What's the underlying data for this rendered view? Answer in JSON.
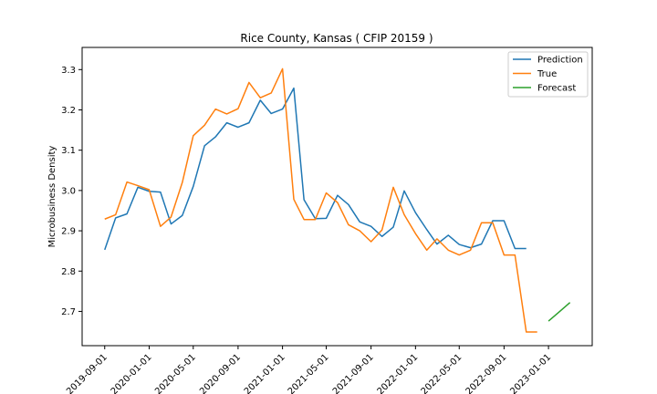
{
  "chart_data": {
    "type": "line",
    "title": "Rice County, Kansas ( CFIP 20159 )",
    "xlabel": "",
    "ylabel": "Microbusiness Density",
    "x_start": "2019-09-01",
    "x_ticks": [
      "2019-09-01",
      "2020-01-01",
      "2020-05-01",
      "2020-09-01",
      "2021-01-01",
      "2021-05-01",
      "2021-09-01",
      "2022-01-01",
      "2022-05-01",
      "2022-09-01",
      "2023-01-01"
    ],
    "y_ticks": [
      "2.7",
      "2.8",
      "2.9",
      "3.0",
      "3.1",
      "3.2",
      "3.3"
    ],
    "ylim": [
      2.615,
      3.355
    ],
    "xlim": [
      "2019-07-01",
      "2023-05-01"
    ],
    "legend_position": "top-right",
    "series": [
      {
        "name": "Prediction",
        "color": "#1f77b4",
        "x": [
          "2019-09-01",
          "2019-10-01",
          "2019-11-01",
          "2019-12-01",
          "2020-01-01",
          "2020-02-01",
          "2020-03-01",
          "2020-04-01",
          "2020-05-01",
          "2020-06-01",
          "2020-07-01",
          "2020-08-01",
          "2020-09-01",
          "2020-10-01",
          "2020-11-01",
          "2020-12-01",
          "2021-01-01",
          "2021-02-01",
          "2021-03-01",
          "2021-04-01",
          "2021-05-01",
          "2021-06-01",
          "2021-07-01",
          "2021-08-01",
          "2021-09-01",
          "2021-10-01",
          "2021-11-01",
          "2021-12-01",
          "2022-01-01",
          "2022-02-01",
          "2022-03-01",
          "2022-04-01",
          "2022-05-01",
          "2022-06-01",
          "2022-07-01",
          "2022-08-01",
          "2022-09-01",
          "2022-10-01",
          "2022-11-01"
        ],
        "y": [
          2.853,
          2.932,
          2.942,
          3.008,
          2.998,
          2.996,
          2.917,
          2.938,
          3.01,
          3.111,
          3.133,
          3.168,
          3.157,
          3.168,
          3.224,
          3.191,
          3.202,
          3.254,
          2.977,
          2.93,
          2.931,
          2.988,
          2.965,
          2.922,
          2.911,
          2.886,
          2.909,
          2.999,
          2.945,
          2.903,
          2.867,
          2.889,
          2.866,
          2.858,
          2.867,
          2.925,
          2.925,
          2.856,
          2.856
        ]
      },
      {
        "name": "True",
        "color": "#ff7f0e",
        "x": [
          "2019-09-01",
          "2019-10-01",
          "2019-11-01",
          "2019-12-01",
          "2020-01-01",
          "2020-02-01",
          "2020-03-01",
          "2020-04-01",
          "2020-05-01",
          "2020-06-01",
          "2020-07-01",
          "2020-08-01",
          "2020-09-01",
          "2020-10-01",
          "2020-11-01",
          "2020-12-01",
          "2021-01-01",
          "2021-02-01",
          "2021-03-01",
          "2021-04-01",
          "2021-05-01",
          "2021-06-01",
          "2021-07-01",
          "2021-08-01",
          "2021-09-01",
          "2021-10-01",
          "2021-11-01",
          "2021-12-01",
          "2022-01-01",
          "2022-02-01",
          "2022-03-01",
          "2022-04-01",
          "2022-05-01",
          "2022-06-01",
          "2022-07-01",
          "2022-08-01",
          "2022-09-01",
          "2022-10-01",
          "2022-11-01",
          "2022-12-01"
        ],
        "y": [
          2.929,
          2.94,
          3.021,
          3.012,
          3.002,
          2.911,
          2.934,
          3.02,
          3.136,
          3.162,
          3.202,
          3.19,
          3.203,
          3.268,
          3.23,
          3.242,
          3.302,
          2.978,
          2.928,
          2.928,
          2.994,
          2.97,
          2.915,
          2.9,
          2.873,
          2.902,
          3.008,
          2.94,
          2.893,
          2.852,
          2.88,
          2.852,
          2.84,
          2.852,
          2.92,
          2.92,
          2.84,
          2.84,
          2.649,
          2.649
        ]
      },
      {
        "name": "Forecast",
        "color": "#2ca02c",
        "x": [
          "2023-01-01",
          "2023-02-01",
          "2023-03-01"
        ],
        "y": [
          2.676,
          2.7,
          2.722
        ]
      }
    ]
  }
}
